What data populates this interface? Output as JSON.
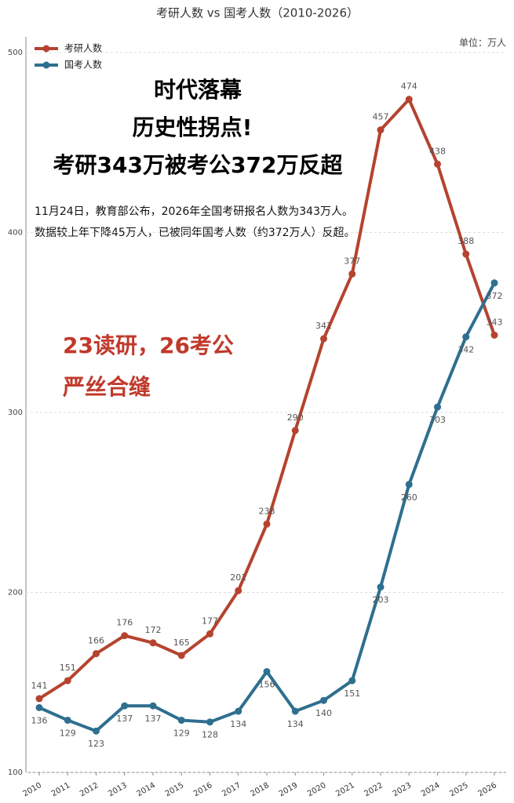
{
  "chart_data": {
    "type": "line",
    "title": "考研人数 vs 国考人数（2010-2026）",
    "unit_label": "单位：万人",
    "annotations": [
      "时代落幕",
      "历史性拐点!",
      "考研343万被考公372万反超",
      "11月24日，教育部公布，2026年全国考研报名人数为343万人。",
      "数据较上年下降45万人，已被同年国考人数（约372万人）反超。",
      "23读研，26考公",
      "严丝合缝"
    ],
    "categories": [
      "2010",
      "2011",
      "2012",
      "2013",
      "2014",
      "2015",
      "2016",
      "2017",
      "2018",
      "2019",
      "2020",
      "2021",
      "2022",
      "2023",
      "2024",
      "2025",
      "2026"
    ],
    "series": [
      {
        "name": "考研人数",
        "color": "#b5432f",
        "values": [
          141,
          151,
          166,
          176,
          172,
          165,
          177,
          201,
          238,
          290,
          341,
          377,
          457,
          474,
          438,
          388,
          343
        ]
      },
      {
        "name": "国考人数",
        "color": "#2f6f8f",
        "values": [
          136,
          129,
          123,
          137,
          137,
          129,
          128,
          134,
          156,
          134,
          140,
          151,
          203,
          260,
          303,
          342,
          372
        ]
      }
    ],
    "ylim": [
      100,
      500
    ],
    "yticks": [
      100,
      200,
      300,
      400,
      500
    ],
    "grid": true,
    "legend": "upper left"
  }
}
